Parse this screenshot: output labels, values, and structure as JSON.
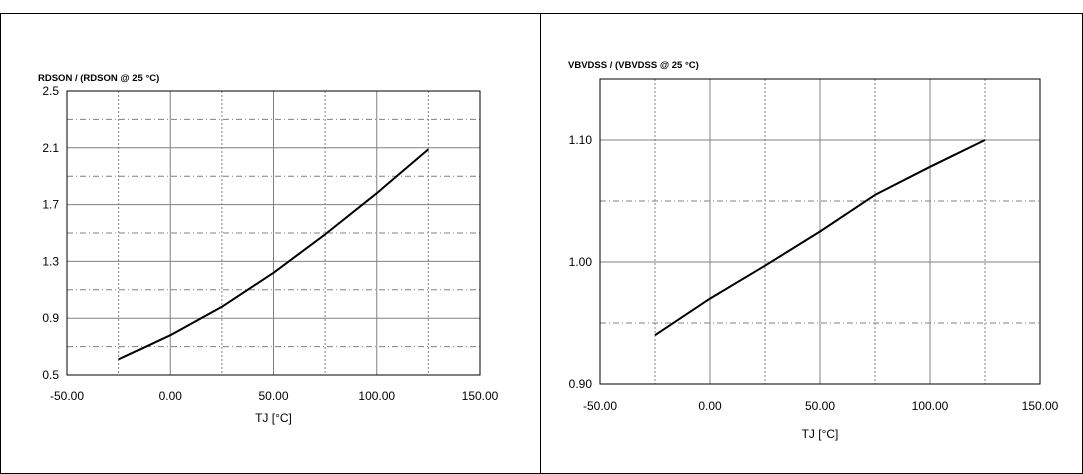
{
  "chart_data": [
    {
      "type": "line",
      "title": "RDSON / (RDSON @ 25 °C)",
      "xlabel": "TJ [°C]",
      "ylabel": "",
      "xlim": [
        -50,
        150
      ],
      "ylim": [
        0.5,
        2.5
      ],
      "x_ticks": [
        -50,
        0,
        50,
        100,
        150
      ],
      "x_tick_labels": [
        "-50.00",
        "0.00",
        "50.00",
        "100.00",
        "150.00"
      ],
      "y_ticks": [
        0.5,
        0.9,
        1.3,
        1.7,
        2.1,
        2.5
      ],
      "y_tick_labels": [
        "0.5",
        "0.9",
        "1.3",
        "1.7",
        "2.1",
        "2.5"
      ],
      "x_minor_grid": [
        -25,
        25,
        75,
        125
      ],
      "y_minor_grid": [
        0.7,
        1.1,
        1.5,
        1.9,
        2.3
      ],
      "grid": true,
      "series": [
        {
          "x": [
            -25,
            0,
            25,
            50,
            75,
            100,
            125
          ],
          "y": [
            0.61,
            0.78,
            0.98,
            1.22,
            1.49,
            1.78,
            2.09
          ]
        }
      ]
    },
    {
      "type": "line",
      "title": "VBVDSS / (VBVDSS @ 25 °C)",
      "xlabel": "TJ [°C]",
      "ylabel": "",
      "xlim": [
        -50,
        150
      ],
      "ylim": [
        0.9,
        1.15
      ],
      "x_ticks": [
        -50,
        0,
        50,
        100,
        150
      ],
      "x_tick_labels": [
        "-50.00",
        "0.00",
        "50.00",
        "100.00",
        "150.00"
      ],
      "y_ticks": [
        0.9,
        1.0,
        1.1
      ],
      "y_tick_labels": [
        "0.90",
        "1.00",
        "1.10"
      ],
      "x_minor_grid": [
        -25,
        25,
        75,
        125
      ],
      "y_minor_grid": [
        0.95,
        1.05
      ],
      "grid": true,
      "series": [
        {
          "x": [
            -25,
            0,
            25,
            50,
            75,
            100,
            125
          ],
          "y": [
            0.94,
            0.97,
            0.997,
            1.025,
            1.055,
            1.078,
            1.1
          ]
        }
      ]
    }
  ]
}
